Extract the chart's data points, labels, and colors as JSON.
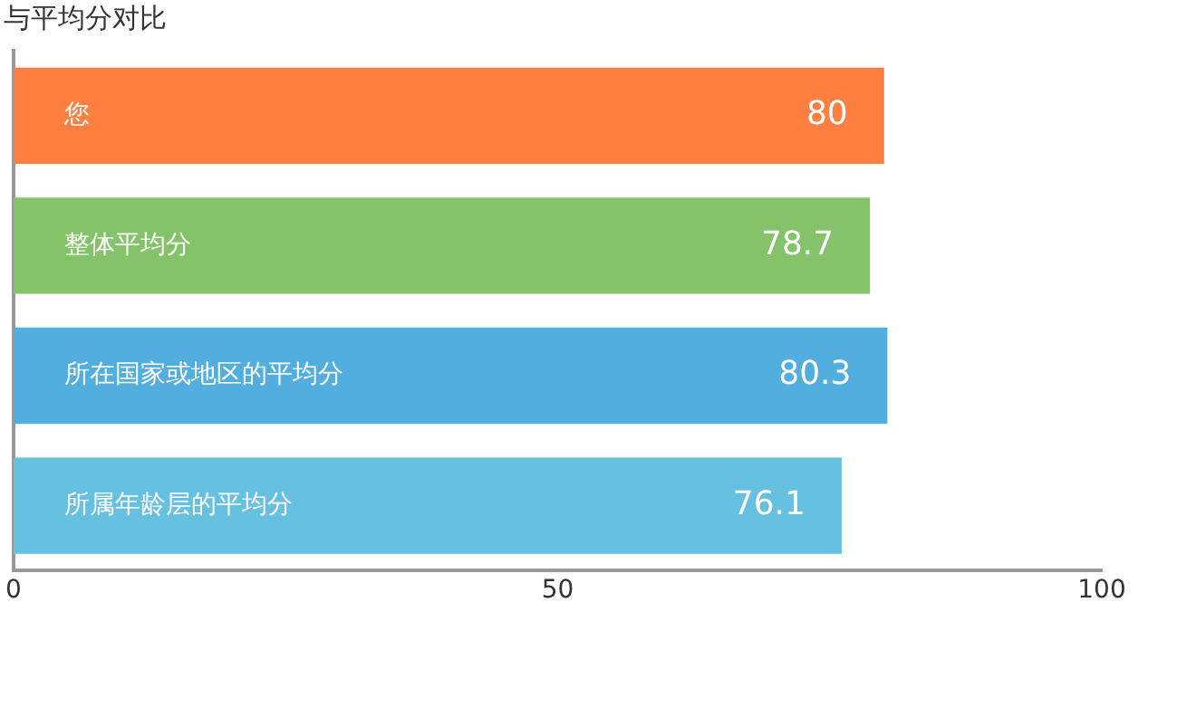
{
  "chart_data": {
    "type": "bar",
    "orientation": "horizontal",
    "title": "与平均分对比",
    "categories": [
      "您",
      "整体平均分",
      "所在国家或地区的平均分",
      "所属年龄层的平均分"
    ],
    "values": [
      80,
      78.7,
      80.3,
      76.1
    ],
    "colors": [
      "#ff7f41",
      "#84c36a",
      "#53aee0",
      "#66c0e0"
    ],
    "xlim": [
      0,
      100
    ],
    "xticks": [
      0,
      50,
      100
    ],
    "grid": false,
    "legend": false,
    "data_labels": true
  }
}
